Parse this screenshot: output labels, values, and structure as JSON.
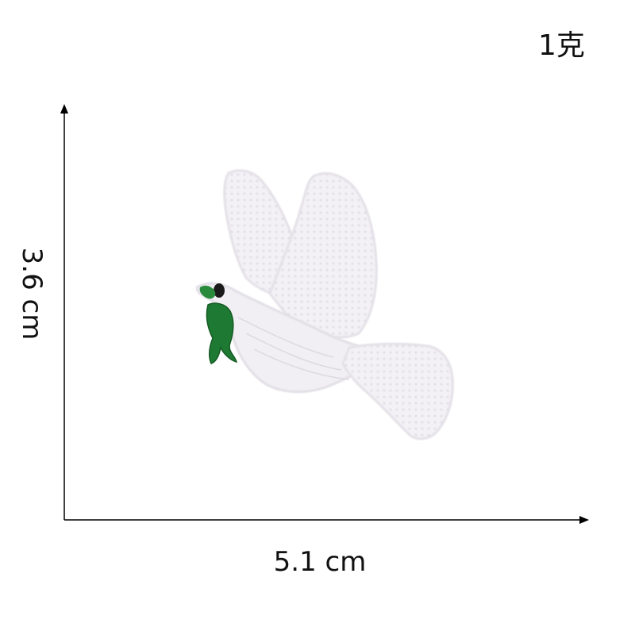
{
  "weight_label": "1克",
  "height_label": "3.6 cm",
  "width_label": "5.1 cm",
  "colors": {
    "dove_fill": "#f2f0f4",
    "dove_stitch": "#d8d4dc",
    "branch": "#1e7a32",
    "beak": "#1a1a1a",
    "axis": "#000000"
  }
}
